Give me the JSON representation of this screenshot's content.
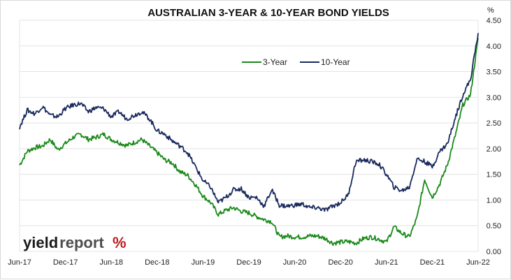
{
  "chart_data": {
    "type": "line",
    "title": "AUSTRALIAN 3-YEAR & 10-YEAR BOND YIELDS",
    "y_unit": "%",
    "ylim": [
      0,
      4.5
    ],
    "y_ticks": [
      "0.00",
      "0.50",
      "1.00",
      "1.50",
      "2.00",
      "2.50",
      "3.00",
      "3.50",
      "4.00",
      "4.50"
    ],
    "x_ticks": [
      "Jun-17",
      "Dec-17",
      "Jun-18",
      "Dec-18",
      "Jun-19",
      "Dec-19",
      "Jun-20",
      "Dec-20",
      "Jun-21",
      "Dec-21",
      "Jun-22"
    ],
    "grid": "horizontal",
    "legend_position": "top-center",
    "x": [
      "Jun-17",
      "Jul-17",
      "Aug-17",
      "Sep-17",
      "Oct-17",
      "Nov-17",
      "Dec-17",
      "Jan-18",
      "Feb-18",
      "Mar-18",
      "Apr-18",
      "May-18",
      "Jun-18",
      "Jul-18",
      "Aug-18",
      "Sep-18",
      "Oct-18",
      "Nov-18",
      "Dec-18",
      "Jan-19",
      "Feb-19",
      "Mar-19",
      "Apr-19",
      "May-19",
      "Jun-19",
      "Jul-19",
      "Aug-19",
      "Sep-19",
      "Oct-19",
      "Nov-19",
      "Dec-19",
      "Jan-20",
      "Feb-20",
      "Mar-20",
      "Apr-20",
      "May-20",
      "Jun-20",
      "Jul-20",
      "Aug-20",
      "Sep-20",
      "Oct-20",
      "Nov-20",
      "Dec-20",
      "Jan-21",
      "Feb-21",
      "Mar-21",
      "Apr-21",
      "May-21",
      "Jun-21",
      "Jul-21",
      "Aug-21",
      "Sep-21",
      "Oct-21",
      "Nov-21",
      "Dec-21",
      "Jan-22",
      "Feb-22",
      "Mar-22",
      "Apr-22",
      "May-22",
      "Jun-22"
    ],
    "series": [
      {
        "name": "3-Year",
        "color": "#1a8a1a",
        "values": [
          1.68,
          1.95,
          2.02,
          2.05,
          2.18,
          1.98,
          2.1,
          2.22,
          2.28,
          2.18,
          2.22,
          2.28,
          2.18,
          2.12,
          2.06,
          2.12,
          2.18,
          2.05,
          1.92,
          1.78,
          1.72,
          1.55,
          1.48,
          1.3,
          1.08,
          0.95,
          0.72,
          0.8,
          0.85,
          0.78,
          0.75,
          0.68,
          0.62,
          0.58,
          0.28,
          0.3,
          0.28,
          0.28,
          0.3,
          0.3,
          0.25,
          0.16,
          0.18,
          0.19,
          0.16,
          0.25,
          0.28,
          0.24,
          0.18,
          0.48,
          0.35,
          0.28,
          0.65,
          1.4,
          1.05,
          1.32,
          1.7,
          2.25,
          2.85,
          3.05,
          4.15
        ]
      },
      {
        "name": "10-Year",
        "color": "#1a2a5e",
        "values": [
          2.42,
          2.75,
          2.68,
          2.82,
          2.65,
          2.62,
          2.78,
          2.85,
          2.88,
          2.72,
          2.8,
          2.78,
          2.62,
          2.72,
          2.58,
          2.65,
          2.72,
          2.58,
          2.35,
          2.28,
          2.15,
          2.05,
          1.92,
          1.65,
          1.38,
          1.25,
          0.95,
          1.05,
          1.2,
          1.22,
          1.05,
          1.05,
          0.88,
          1.2,
          0.9,
          0.88,
          0.9,
          0.92,
          0.85,
          0.85,
          0.8,
          0.88,
          0.95,
          1.1,
          1.75,
          1.78,
          1.75,
          1.7,
          1.5,
          1.25,
          1.18,
          1.25,
          1.8,
          1.75,
          1.65,
          1.95,
          2.1,
          2.6,
          3.05,
          3.35,
          4.25
        ]
      }
    ]
  },
  "logo": {
    "part1": "yield",
    "part2": "report",
    "symbol": "%"
  }
}
